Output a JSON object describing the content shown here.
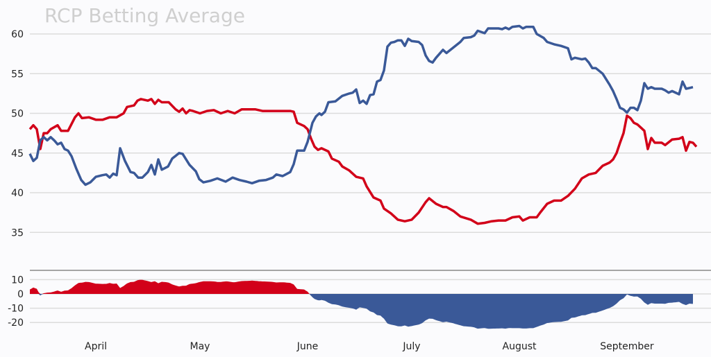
{
  "chart_data": [
    {
      "type": "line",
      "title": "RCP Betting Average",
      "xlabel": "",
      "ylabel": "",
      "ylim": [
        32,
        62
      ],
      "yticks": [
        "60",
        "55",
        "50",
        "45",
        "40",
        "35"
      ],
      "xlim": [
        0,
        196
      ],
      "xticks": [
        {
          "label": "April",
          "x": 19
        },
        {
          "label": "May",
          "x": 49
        },
        {
          "label": "June",
          "x": 80
        },
        {
          "label": "July",
          "x": 110
        },
        {
          "label": "August",
          "x": 141
        },
        {
          "label": "September",
          "x": 172
        }
      ],
      "grid": true,
      "series": [
        {
          "name": "red",
          "color": "#d20019",
          "points": [
            [
              0,
              48.0
            ],
            [
              1,
              48.5
            ],
            [
              2,
              48
            ],
            [
              3,
              45.5
            ],
            [
              4,
              47.5
            ],
            [
              5,
              47.5
            ],
            [
              6,
              48
            ],
            [
              8,
              48.5
            ],
            [
              9,
              47.8
            ],
            [
              11,
              47.8
            ],
            [
              13,
              49.5
            ],
            [
              14,
              50
            ],
            [
              15,
              49.4
            ],
            [
              17,
              49.5
            ],
            [
              19,
              49.2
            ],
            [
              21,
              49.2
            ],
            [
              23,
              49.5
            ],
            [
              25,
              49.5
            ],
            [
              27,
              50
            ],
            [
              28,
              50.8
            ],
            [
              30,
              51
            ],
            [
              31,
              51.6
            ],
            [
              32,
              51.8
            ],
            [
              34,
              51.6
            ],
            [
              35,
              51.8
            ],
            [
              36,
              51.2
            ],
            [
              37,
              51.7
            ],
            [
              38,
              51.4
            ],
            [
              40,
              51.4
            ],
            [
              42,
              50.5
            ],
            [
              43,
              50.2
            ],
            [
              44,
              50.6
            ],
            [
              45,
              50.0
            ],
            [
              46,
              50.4
            ],
            [
              47,
              50.3
            ],
            [
              49,
              50
            ],
            [
              51,
              50.3
            ],
            [
              53,
              50.4
            ],
            [
              55,
              50
            ],
            [
              57,
              50.3
            ],
            [
              59,
              50
            ],
            [
              61,
              50.5
            ],
            [
              63,
              50.5
            ],
            [
              65,
              50.5
            ],
            [
              67,
              50.3
            ],
            [
              71,
              50.3
            ],
            [
              75,
              50.3
            ],
            [
              76,
              50.2
            ],
            [
              77,
              48.8
            ],
            [
              79,
              48.4
            ],
            [
              80,
              48
            ],
            [
              81,
              46.8
            ],
            [
              82,
              45.8
            ],
            [
              83,
              45.4
            ],
            [
              84,
              45.6
            ],
            [
              86,
              45.2
            ],
            [
              87,
              44.3
            ],
            [
              89,
              43.9
            ],
            [
              90,
              43.3
            ],
            [
              92,
              42.8
            ],
            [
              94,
              42
            ],
            [
              96,
              41.8
            ],
            [
              97,
              40.8
            ],
            [
              99,
              39.4
            ],
            [
              101,
              39
            ],
            [
              102,
              38
            ],
            [
              104,
              37.4
            ],
            [
              106,
              36.6
            ],
            [
              108,
              36.4
            ],
            [
              110,
              36.6
            ],
            [
              112,
              37.5
            ],
            [
              114,
              38.8
            ],
            [
              115,
              39.3
            ],
            [
              117,
              38.6
            ],
            [
              119,
              38.2
            ],
            [
              120,
              38.2
            ],
            [
              122,
              37.7
            ],
            [
              124,
              37
            ],
            [
              127,
              36.6
            ],
            [
              129,
              36.1
            ],
            [
              131,
              36.2
            ],
            [
              133,
              36.4
            ],
            [
              135,
              36.5
            ],
            [
              137,
              36.5
            ],
            [
              139,
              36.9
            ],
            [
              141,
              37
            ],
            [
              142,
              36.5
            ],
            [
              144,
              36.9
            ],
            [
              146,
              36.9
            ],
            [
              147,
              37.5
            ],
            [
              149,
              38.6
            ],
            [
              151,
              39
            ],
            [
              153,
              39
            ],
            [
              155,
              39.6
            ],
            [
              157,
              40.5
            ],
            [
              159,
              41.8
            ],
            [
              161,
              42.3
            ],
            [
              163,
              42.5
            ],
            [
              165,
              43.4
            ],
            [
              167,
              43.8
            ],
            [
              168,
              44.2
            ],
            [
              169,
              45
            ],
            [
              170,
              46.3
            ],
            [
              171,
              47.5
            ],
            [
              172,
              49.7
            ],
            [
              173,
              49.4
            ],
            [
              174,
              48.8
            ],
            [
              175,
              48.6
            ],
            [
              176,
              48.2
            ],
            [
              177,
              47.8
            ],
            [
              178,
              45.5
            ],
            [
              179,
              46.9
            ],
            [
              180,
              46.3
            ],
            [
              182,
              46.3
            ],
            [
              183,
              46.0
            ],
            [
              185,
              46.7
            ],
            [
              187,
              46.8
            ],
            [
              188,
              47
            ],
            [
              189,
              45.3
            ],
            [
              190,
              46.4
            ],
            [
              191,
              46.3
            ],
            [
              192,
              45.8
            ]
          ]
        },
        {
          "name": "blue",
          "color": "#3a5998",
          "points": [
            [
              0,
              44.9
            ],
            [
              1,
              44.0
            ],
            [
              2,
              44.4
            ],
            [
              3,
              46.6
            ],
            [
              4,
              47.0
            ],
            [
              5,
              46.6
            ],
            [
              6,
              47.0
            ],
            [
              7,
              46.6
            ],
            [
              8,
              46.1
            ],
            [
              9,
              46.3
            ],
            [
              10,
              45.5
            ],
            [
              11,
              45.3
            ],
            [
              12,
              44.6
            ],
            [
              13.4,
              43.0
            ],
            [
              14.8,
              41.6
            ],
            [
              16,
              41.0
            ],
            [
              17.4,
              41.3
            ],
            [
              19,
              42.0
            ],
            [
              20.8,
              42.2
            ],
            [
              22,
              42.3
            ],
            [
              23,
              41.9
            ],
            [
              24,
              42.4
            ],
            [
              25,
              42.2
            ],
            [
              26,
              45.6
            ],
            [
              27.4,
              44.0
            ],
            [
              29,
              42.6
            ],
            [
              30,
              42.5
            ],
            [
              31.2,
              41.9
            ],
            [
              32.4,
              41.9
            ],
            [
              34,
              42.6
            ],
            [
              35,
              43.5
            ],
            [
              36,
              42.3
            ],
            [
              37,
              44.2
            ],
            [
              38,
              42.9
            ],
            [
              39.8,
              43.3
            ],
            [
              41,
              44.3
            ],
            [
              43,
              45.0
            ],
            [
              44,
              44.9
            ],
            [
              46,
              43.5
            ],
            [
              47.8,
              42.7
            ],
            [
              48.8,
              41.7
            ],
            [
              50,
              41.3
            ],
            [
              52,
              41.5
            ],
            [
              54,
              41.8
            ],
            [
              56.4,
              41.4
            ],
            [
              58.4,
              41.9
            ],
            [
              60.4,
              41.6
            ],
            [
              62.4,
              41.4
            ],
            [
              64,
              41.2
            ],
            [
              66,
              41.5
            ],
            [
              68,
              41.6
            ],
            [
              70,
              41.9
            ],
            [
              71,
              42.3
            ],
            [
              72.8,
              42.1
            ],
            [
              75,
              42.6
            ],
            [
              76,
              43.6
            ],
            [
              77,
              45.3
            ],
            [
              79,
              45.3
            ],
            [
              80,
              46.4
            ],
            [
              81.4,
              48.8
            ],
            [
              82.4,
              49.6
            ],
            [
              83.4,
              50
            ],
            [
              84,
              49.8
            ],
            [
              85,
              50.2
            ],
            [
              86,
              51.4
            ],
            [
              88,
              51.5
            ],
            [
              90,
              52.2
            ],
            [
              92,
              52.5
            ],
            [
              93,
              52.6
            ],
            [
              94,
              53
            ],
            [
              95,
              51.3
            ],
            [
              96,
              51.6
            ],
            [
              97,
              51.2
            ],
            [
              98,
              52.3
            ],
            [
              99,
              52.4
            ],
            [
              100,
              54
            ],
            [
              101,
              54.2
            ],
            [
              102,
              55.4
            ],
            [
              103,
              58.4
            ],
            [
              104,
              58.9
            ],
            [
              105,
              59
            ],
            [
              106,
              59.2
            ],
            [
              107,
              59.2
            ],
            [
              108,
              58.5
            ],
            [
              109,
              59.4
            ],
            [
              110,
              59.1
            ],
            [
              112,
              59
            ],
            [
              113,
              58.6
            ],
            [
              114,
              57.3
            ],
            [
              115,
              56.6
            ],
            [
              116,
              56.4
            ],
            [
              117,
              57
            ],
            [
              119,
              58
            ],
            [
              120,
              57.6
            ],
            [
              122,
              58.3
            ],
            [
              124,
              59
            ],
            [
              125,
              59.5
            ],
            [
              127,
              59.6
            ],
            [
              128,
              59.8
            ],
            [
              129,
              60.4
            ],
            [
              131,
              60.1
            ],
            [
              132,
              60.7
            ],
            [
              135,
              60.7
            ],
            [
              136,
              60.6
            ],
            [
              137,
              60.8
            ],
            [
              138,
              60.6
            ],
            [
              139,
              60.9
            ],
            [
              141,
              61.0
            ],
            [
              142,
              60.7
            ],
            [
              143,
              60.9
            ],
            [
              145,
              60.9
            ],
            [
              146,
              60
            ],
            [
              148,
              59.5
            ],
            [
              149,
              59
            ],
            [
              151,
              58.7
            ],
            [
              153,
              58.5
            ],
            [
              155,
              58.2
            ],
            [
              156,
              56.8
            ],
            [
              157,
              57
            ],
            [
              159,
              56.8
            ],
            [
              160,
              56.9
            ],
            [
              161,
              56.4
            ],
            [
              162,
              55.7
            ],
            [
              163,
              55.7
            ],
            [
              165,
              55
            ],
            [
              167,
              53.6
            ],
            [
              168,
              52.8
            ],
            [
              169,
              51.8
            ],
            [
              170,
              50.7
            ],
            [
              171,
              50.5
            ],
            [
              172,
              50.1
            ],
            [
              173,
              50.7
            ],
            [
              174,
              50.7
            ],
            [
              175,
              50.4
            ],
            [
              176,
              51.6
            ],
            [
              177,
              53.8
            ],
            [
              178,
              53.1
            ],
            [
              179,
              53.3
            ],
            [
              180,
              53.1
            ],
            [
              182,
              53.1
            ],
            [
              183,
              52.9
            ],
            [
              184,
              52.6
            ],
            [
              185,
              52.8
            ],
            [
              187,
              52.4
            ],
            [
              188,
              54
            ],
            [
              189,
              53.1
            ],
            [
              190,
              53.2
            ],
            [
              191,
              53.3
            ]
          ]
        }
      ]
    },
    {
      "type": "area",
      "title": "",
      "description_of_values": "spread = red - blue",
      "ylim": [
        -25,
        12
      ],
      "yticks": [
        "10",
        "0",
        "-10",
        "-20"
      ],
      "positive_color": "#d20019",
      "negative_color": "#3a5998"
    }
  ]
}
